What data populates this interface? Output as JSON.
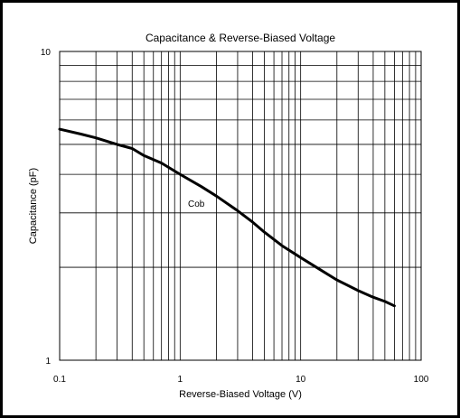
{
  "chart_data": {
    "type": "line",
    "title": "Capacitance & Reverse-Biased Voltage",
    "xlabel": "Reverse-Biased Voltage (V)",
    "ylabel": "Capacitance (pF)",
    "x_scale": "log",
    "y_scale": "log",
    "xlim": [
      0.1,
      100
    ],
    "ylim": [
      1,
      10
    ],
    "x_tick_labels": [
      "0.1",
      "1",
      "10",
      "100"
    ],
    "y_tick_labels": [
      "1",
      "10"
    ],
    "grid": true,
    "series": [
      {
        "name": "Cob",
        "x": [
          0.1,
          0.15,
          0.2,
          0.3,
          0.4,
          0.5,
          0.7,
          1,
          1.5,
          2,
          3,
          4,
          5,
          7,
          10,
          15,
          20,
          30,
          40,
          50,
          60
        ],
        "y": [
          5.6,
          5.4,
          5.25,
          5.0,
          4.85,
          4.6,
          4.35,
          4.0,
          3.65,
          3.4,
          3.05,
          2.8,
          2.6,
          2.35,
          2.15,
          1.95,
          1.82,
          1.68,
          1.6,
          1.55,
          1.5
        ]
      }
    ],
    "color": "#000000"
  }
}
